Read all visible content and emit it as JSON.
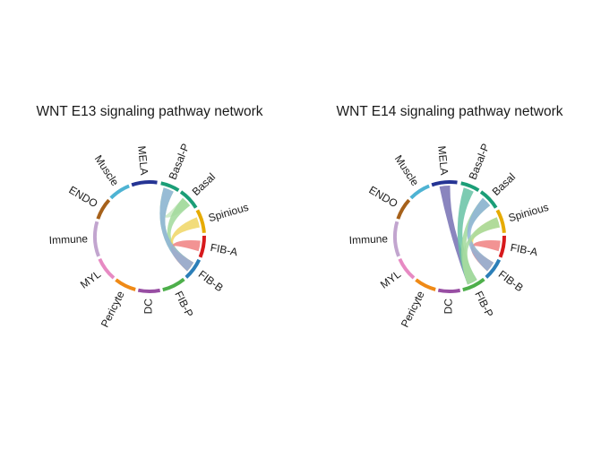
{
  "panels": [
    {
      "title": "WNT E13 signaling pathway network",
      "sectors": [
        {
          "name": "Basal-P",
          "color": "#1b9e77"
        },
        {
          "name": "Basal",
          "color": "#1b9e77"
        },
        {
          "name": "Spinious",
          "color": "#e6ab02"
        },
        {
          "name": "FIB-A",
          "color": "#d7191c"
        },
        {
          "name": "FIB-B",
          "color": "#2c7fb8"
        },
        {
          "name": "FIB-P",
          "color": "#4daf4a"
        },
        {
          "name": "DC",
          "color": "#984ea3"
        },
        {
          "name": "Pericyte",
          "color": "#ef8a17"
        },
        {
          "name": "MYL",
          "color": "#e78ac3"
        },
        {
          "name": "Immune",
          "color": "#c2a5cf"
        },
        {
          "name": "ENDO",
          "color": "#a6611a"
        },
        {
          "name": "Muscle",
          "color": "#4eb3d3"
        },
        {
          "name": "MELA",
          "color": "#253494"
        }
      ],
      "links": [
        {
          "from": "Basal-P",
          "to": "FIB-B",
          "color": "#a6dba0"
        },
        {
          "from": "Basal-P",
          "to": "Basal",
          "color": "#c7e9c0"
        },
        {
          "from": "Basal",
          "to": "FIB-B",
          "color": "#a1d99b"
        },
        {
          "from": "Spinious",
          "to": "FIB-B",
          "color": "#f0d664"
        },
        {
          "from": "FIB-A",
          "to": "FIB-B",
          "color": "#f08080"
        },
        {
          "from": "FIB-B",
          "to": "Basal-P",
          "color": "#8fb4d9"
        }
      ]
    },
    {
      "title": "WNT E14 signaling pathway network",
      "sectors": [
        {
          "name": "Basal-P",
          "color": "#1b9e77"
        },
        {
          "name": "Basal",
          "color": "#1b9e77"
        },
        {
          "name": "Spinious",
          "color": "#e6ab02"
        },
        {
          "name": "FIB-A",
          "color": "#d7191c"
        },
        {
          "name": "FIB-B",
          "color": "#2c7fb8"
        },
        {
          "name": "FIB-P",
          "color": "#4daf4a"
        },
        {
          "name": "DC",
          "color": "#984ea3"
        },
        {
          "name": "Pericyte",
          "color": "#ef8a17"
        },
        {
          "name": "MYL",
          "color": "#e78ac3"
        },
        {
          "name": "Immune",
          "color": "#c2a5cf"
        },
        {
          "name": "ENDO",
          "color": "#a6611a"
        },
        {
          "name": "Muscle",
          "color": "#4eb3d3"
        },
        {
          "name": "MELA",
          "color": "#253494"
        }
      ],
      "links": [
        {
          "from": "MELA",
          "to": "FIB-P",
          "color": "#7570b3"
        },
        {
          "from": "Basal-P",
          "to": "FIB-P",
          "color": "#66c2a4"
        },
        {
          "from": "Basal",
          "to": "FIB-P",
          "color": "#a1d99b"
        },
        {
          "from": "Spinious",
          "to": "FIB-B",
          "color": "#f0d664"
        },
        {
          "from": "FIB-A",
          "to": "FIB-B",
          "color": "#f08080"
        },
        {
          "from": "FIB-B",
          "to": "Basal",
          "color": "#8fb4d9"
        },
        {
          "from": "FIB-P",
          "to": "Spinious",
          "color": "#a6dba0"
        }
      ]
    }
  ]
}
